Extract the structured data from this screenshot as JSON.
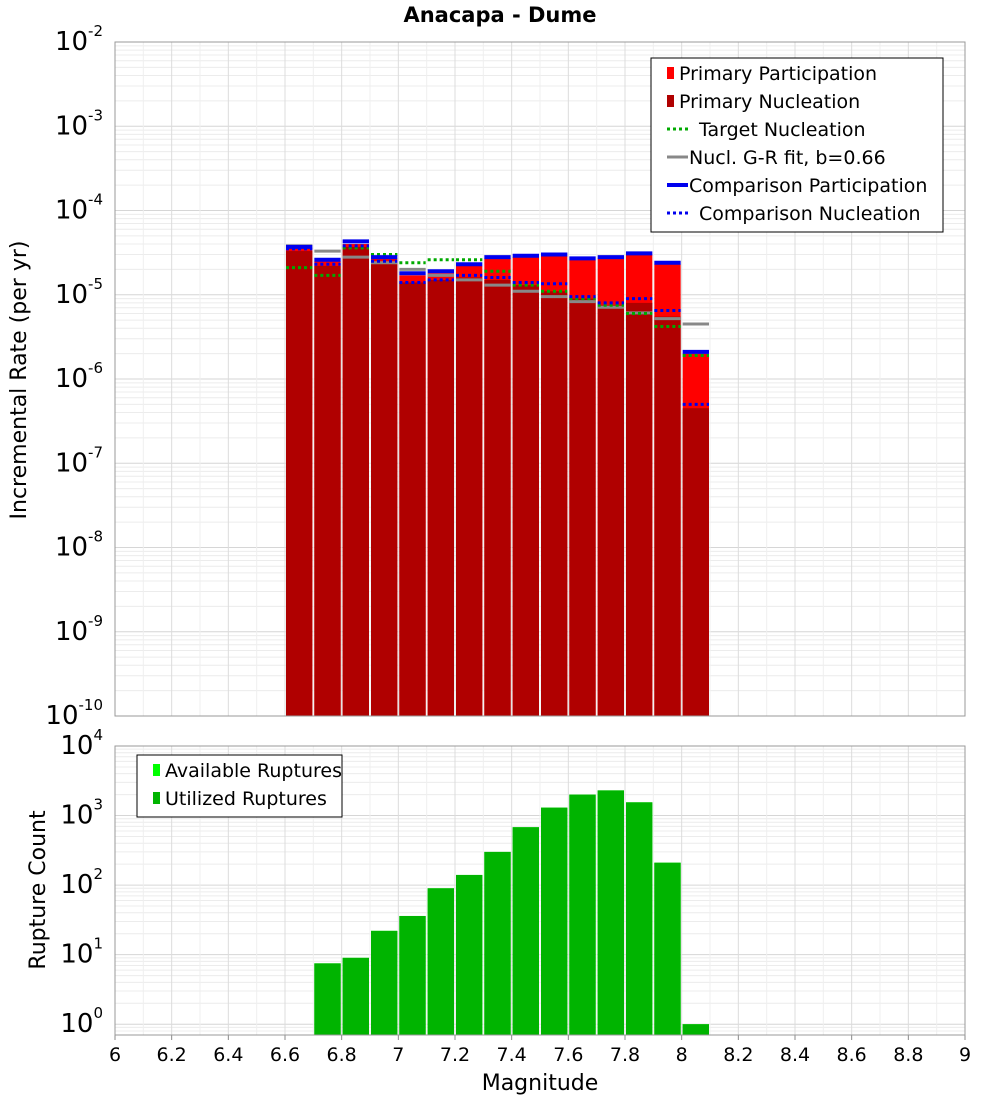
{
  "chart_data": [
    {
      "type": "bar",
      "title": "Anacapa - Dume",
      "xlabel": "",
      "ylabel": "Incremental Rate (per yr)",
      "yscale": "log",
      "xlim": [
        6,
        9
      ],
      "ylim": [
        1e-10,
        0.01
      ],
      "y_ticks": [
        {
          "base": "10",
          "exp": "-10"
        },
        {
          "base": "10",
          "exp": "-9"
        },
        {
          "base": "10",
          "exp": "-8"
        },
        {
          "base": "10",
          "exp": "-7"
        },
        {
          "base": "10",
          "exp": "-6"
        },
        {
          "base": "10",
          "exp": "-5"
        },
        {
          "base": "10",
          "exp": "-4"
        },
        {
          "base": "10",
          "exp": "-3"
        },
        {
          "base": "10",
          "exp": "-2"
        }
      ],
      "grid": true,
      "legend_position": "top-right",
      "series": [
        {
          "name": "Primary Participation",
          "color": "#ff0000",
          "style": "bar",
          "x": [
            6.65,
            6.75,
            6.85,
            6.95,
            7.05,
            7.15,
            7.25,
            7.35,
            7.45,
            7.55,
            7.65,
            7.75,
            7.85,
            7.95,
            8.05
          ],
          "values": [
            3.6e-05,
            2.5e-05,
            4e-05,
            2.7e-05,
            1.7e-05,
            1.8e-05,
            2.2e-05,
            2.7e-05,
            2.8e-05,
            2.9e-05,
            2.6e-05,
            2.7e-05,
            3e-05,
            2.3e-05,
            2e-06
          ]
        },
        {
          "name": "Primary Nucleation",
          "color": "#b00000",
          "style": "bar",
          "x": [
            6.65,
            6.75,
            6.85,
            6.95,
            7.05,
            7.15,
            7.25,
            7.35,
            7.45,
            7.55,
            7.65,
            7.75,
            7.85,
            7.95,
            8.05
          ],
          "values": [
            3.3e-05,
            2.2e-05,
            3.7e-05,
            2.4e-05,
            1.4e-05,
            1.5e-05,
            1.6e-05,
            1.5e-05,
            1.3e-05,
            1.1e-05,
            9e-06,
            7.5e-06,
            8e-06,
            5.5e-06,
            4.5e-07
          ]
        },
        {
          "name": "Target Nucleation",
          "color": "#00aa00",
          "style": "dotted",
          "x": [
            6.65,
            6.75,
            6.85,
            6.95,
            7.05,
            7.15,
            7.25,
            7.35,
            7.45,
            7.55,
            7.65,
            7.75,
            7.85,
            7.95,
            8.05
          ],
          "values": [
            2.1e-05,
            1.7e-05,
            3.6e-05,
            3e-05,
            2.4e-05,
            2.6e-05,
            2.6e-05,
            1.9e-05,
            1.3e-05,
            1.1e-05,
            9e-06,
            7.5e-06,
            6e-06,
            4.2e-06,
            1.9e-06
          ]
        },
        {
          "name": "Nucl. G-R fit, b=0.66",
          "color": "#888888",
          "style": "solid",
          "x": [
            6.65,
            6.75,
            6.85,
            6.95,
            7.05,
            7.15,
            7.25,
            7.35,
            7.45,
            7.55,
            7.65,
            7.75,
            7.85,
            7.95,
            8.05
          ],
          "values": [
            3.8e-05,
            3.3e-05,
            2.8e-05,
            2.4e-05,
            2e-05,
            1.7e-05,
            1.5e-05,
            1.3e-05,
            1.1e-05,
            9.5e-06,
            8.3e-06,
            7.1e-06,
            6.1e-06,
            5.2e-06,
            4.5e-06
          ]
        },
        {
          "name": "Comparison Participation",
          "color": "#0000ee",
          "style": "thick",
          "x": [
            6.65,
            6.75,
            6.85,
            6.95,
            7.05,
            7.15,
            7.25,
            7.35,
            7.45,
            7.55,
            7.65,
            7.75,
            7.85,
            7.95,
            8.05
          ],
          "values": [
            3.7e-05,
            2.6e-05,
            4.3e-05,
            2.8e-05,
            1.8e-05,
            1.9e-05,
            2.3e-05,
            2.8e-05,
            2.9e-05,
            3e-05,
            2.7e-05,
            2.8e-05,
            3.1e-05,
            2.4e-05,
            2.1e-06
          ]
        },
        {
          "name": "Comparison Nucleation",
          "color": "#0000ee",
          "style": "dotted",
          "x": [
            6.65,
            6.75,
            6.85,
            6.95,
            7.05,
            7.15,
            7.25,
            7.35,
            7.45,
            7.55,
            7.65,
            7.75,
            7.85,
            7.95,
            8.05
          ],
          "values": [
            3.5e-05,
            2.3e-05,
            3.8e-05,
            2.5e-05,
            1.4e-05,
            1.5e-05,
            1.7e-05,
            1.6e-05,
            1.4e-05,
            1.35e-05,
            9.5e-06,
            8e-06,
            9e-06,
            6.5e-06,
            5e-07
          ]
        }
      ]
    },
    {
      "type": "bar",
      "xlabel": "Magnitude",
      "ylabel": "Rupture Count",
      "yscale": "log",
      "xlim": [
        6,
        9
      ],
      "ylim": [
        0.7,
        10000
      ],
      "y_ticks": [
        {
          "base": "10",
          "exp": "0"
        },
        {
          "base": "10",
          "exp": "1"
        },
        {
          "base": "10",
          "exp": "2"
        },
        {
          "base": "10",
          "exp": "3"
        },
        {
          "base": "10",
          "exp": "4"
        }
      ],
      "x_ticks": [
        "6",
        "6.2",
        "6.4",
        "6.6",
        "6.8",
        "7",
        "7.2",
        "7.4",
        "7.6",
        "7.8",
        "8",
        "8.2",
        "8.4",
        "8.6",
        "8.8",
        "9"
      ],
      "grid": true,
      "legend_position": "top-left",
      "series": [
        {
          "name": "Available Ruptures",
          "color": "#00ff00",
          "style": "bar",
          "x": [
            6.75,
            6.85,
            6.95,
            7.05,
            7.15,
            7.25,
            7.35,
            7.45,
            7.55,
            7.65,
            7.75,
            7.85,
            7.95,
            8.05
          ],
          "values": [
            7.5,
            9,
            22,
            36,
            90,
            140,
            300,
            680,
            1300,
            2000,
            2300,
            1550,
            210,
            1
          ]
        },
        {
          "name": "Utilized Ruptures",
          "color": "#00b400",
          "style": "bar",
          "x": [
            6.75,
            6.85,
            6.95,
            7.05,
            7.15,
            7.25,
            7.35,
            7.45,
            7.55,
            7.65,
            7.75,
            7.85,
            7.95,
            8.05
          ],
          "values": [
            7.5,
            9,
            22,
            36,
            90,
            140,
            300,
            680,
            1300,
            2000,
            2300,
            1550,
            210,
            1
          ]
        }
      ]
    }
  ]
}
